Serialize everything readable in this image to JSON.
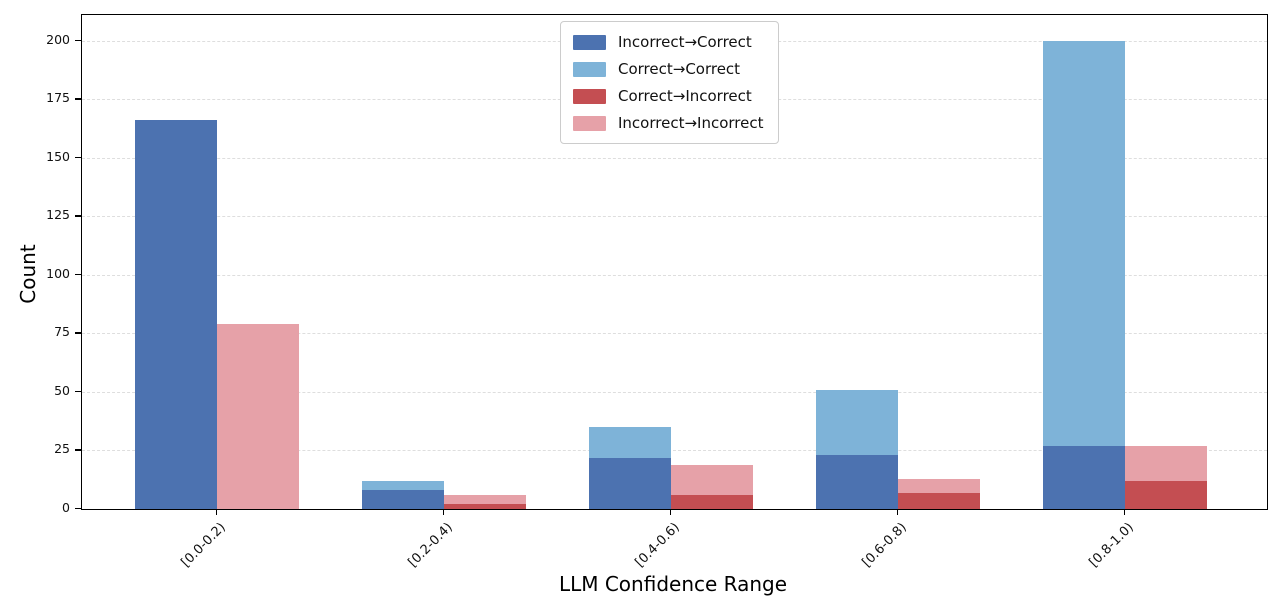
{
  "chart_data": {
    "type": "bar",
    "title": "",
    "xlabel": "LLM Confidence Range",
    "ylabel": "Count",
    "categories": [
      "[0.0-0.2)",
      "[0.2-0.4)",
      "[0.4-0.6)",
      "[0.6-0.8)",
      "[0.8-1.0)"
    ],
    "series": [
      {
        "name": "Incorrect→Correct",
        "color": "#4C72B0",
        "column": "left",
        "layer": "front",
        "values": [
          166,
          8,
          22,
          23,
          27
        ]
      },
      {
        "name": "Correct→Correct",
        "color": "#7EB3D8",
        "column": "left",
        "layer": "back",
        "values": [
          0,
          12,
          35,
          51,
          200
        ]
      },
      {
        "name": "Correct→Incorrect",
        "color": "#C44E52",
        "column": "right",
        "layer": "front",
        "values": [
          0,
          2,
          6,
          7,
          12
        ]
      },
      {
        "name": "Incorrect→Incorrect",
        "color": "#E6A1A8",
        "column": "right",
        "layer": "back",
        "values": [
          79,
          6,
          19,
          13,
          27
        ]
      }
    ],
    "ylim": [
      0,
      211
    ],
    "yticks": [
      0,
      25,
      50,
      75,
      100,
      125,
      150,
      175,
      200
    ],
    "grid": {
      "axis": "y",
      "style": "dashed",
      "color": "#dedede"
    },
    "legend": {
      "position": "upper center",
      "entries": [
        "Incorrect→Correct",
        "Correct→Correct",
        "Correct→Incorrect",
        "Incorrect→Incorrect"
      ]
    }
  }
}
